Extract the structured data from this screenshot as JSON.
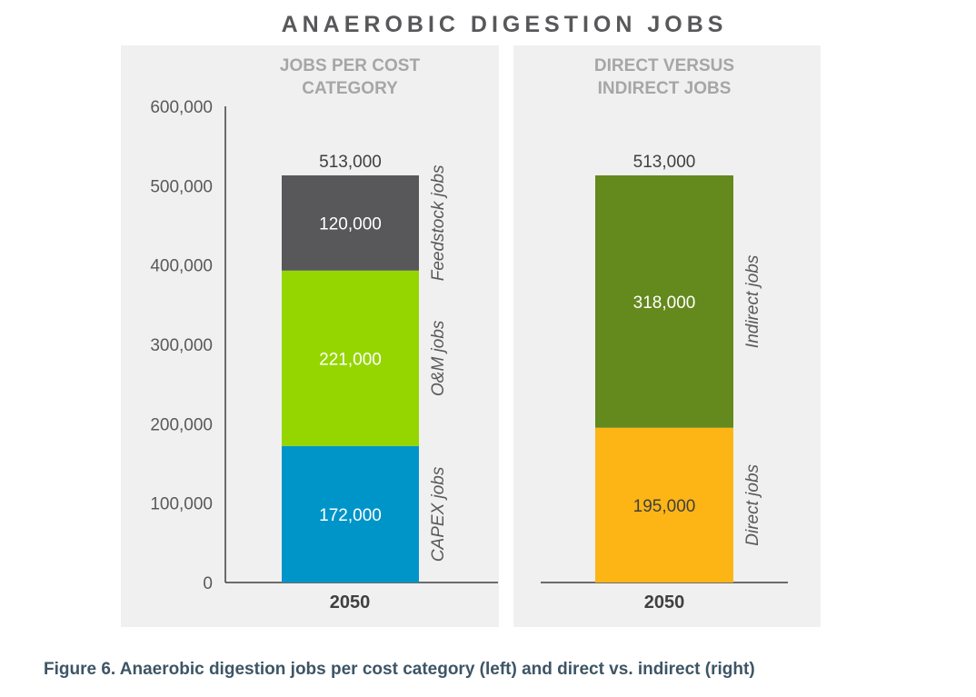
{
  "title": "ANAEROBIC DIGESTION JOBS",
  "caption": "Figure 6. Anaerobic digestion jobs per cost category (left) and direct vs. indirect (right)",
  "chart_data": [
    {
      "type": "bar",
      "stacked": true,
      "title": [
        "JOBS PER COST",
        "CATEGORY"
      ],
      "categories": [
        "2050"
      ],
      "ylim": [
        0,
        600000
      ],
      "yticks": [
        "0",
        "100,000",
        "200,000",
        "300,000",
        "400,000",
        "500,000",
        "600,000"
      ],
      "total_label": "513,000",
      "series": [
        {
          "name": "CAPEX jobs",
          "values": [
            172000
          ],
          "label": "172,000",
          "color": "#0095c8",
          "label_color": "#ffffff"
        },
        {
          "name": "O&M jobs",
          "values": [
            221000
          ],
          "label": "221,000",
          "color": "#95d600",
          "label_color": "#ffffff"
        },
        {
          "name": "Feedstock jobs",
          "values": [
            120000
          ],
          "label": "120,000",
          "color": "#58585a",
          "label_color": "#ffffff"
        }
      ]
    },
    {
      "type": "bar",
      "stacked": true,
      "title": [
        "DIRECT VERSUS",
        "INDIRECT JOBS"
      ],
      "categories": [
        "2050"
      ],
      "ylim": [
        0,
        600000
      ],
      "total_label": "513,000",
      "series": [
        {
          "name": "Direct jobs",
          "values": [
            195000
          ],
          "label": "195,000",
          "color": "#fdb515",
          "label_color": "#404040"
        },
        {
          "name": "Indirect jobs",
          "values": [
            318000
          ],
          "label": "318,000",
          "color": "#64891c",
          "label_color": "#ffffff"
        }
      ]
    }
  ]
}
